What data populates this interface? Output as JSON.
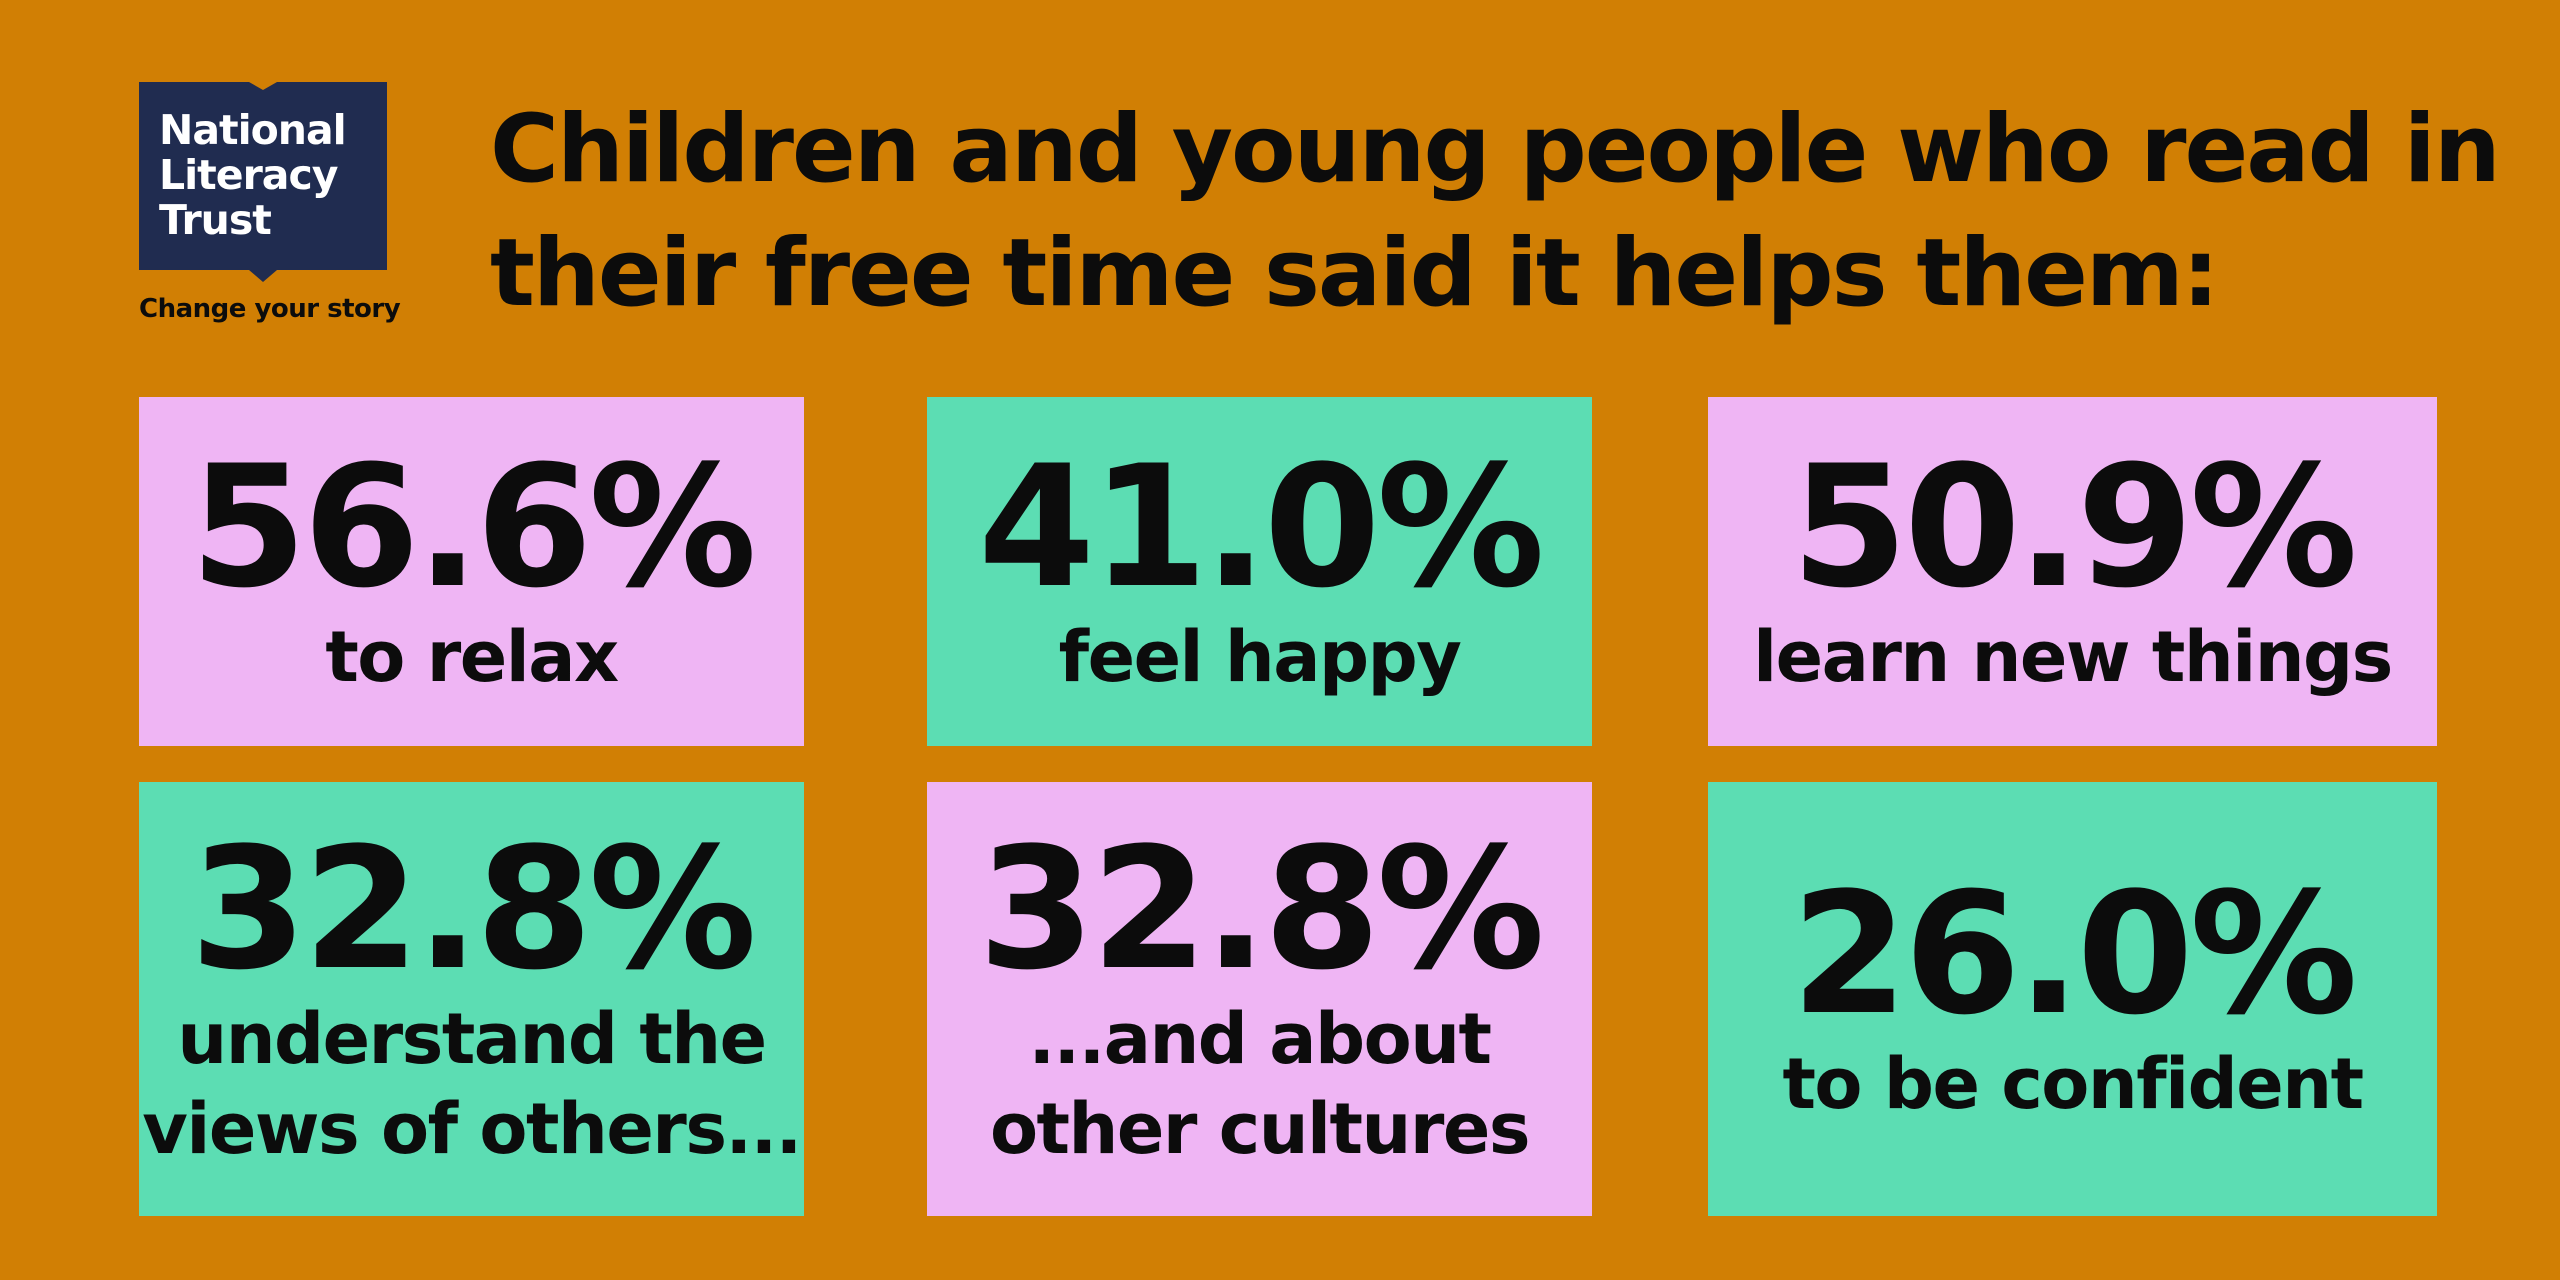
{
  "brand": {
    "logo_lines": [
      "National",
      "Literacy",
      "Trust"
    ],
    "tagline": "Change your story",
    "logo_color": "#202c50"
  },
  "headline": {
    "line1": "Children and young people who read in",
    "line2": "their free time said it helps them:"
  },
  "colors": {
    "background": "#d17f04",
    "pink": "#efb5f4",
    "green": "#5cddb3",
    "text": "#0c0c0c"
  },
  "stats": [
    {
      "value": "56.6%",
      "label": "to relax"
    },
    {
      "value": "41.0%",
      "label": "feel happy"
    },
    {
      "value": "50.9%",
      "label": "learn new things"
    },
    {
      "value": "32.8%",
      "label": "understand the\nviews of others..."
    },
    {
      "value": "32.8%",
      "label": "...and about\nother cultures"
    },
    {
      "value": "26.0%",
      "label": "to be confident"
    }
  ]
}
